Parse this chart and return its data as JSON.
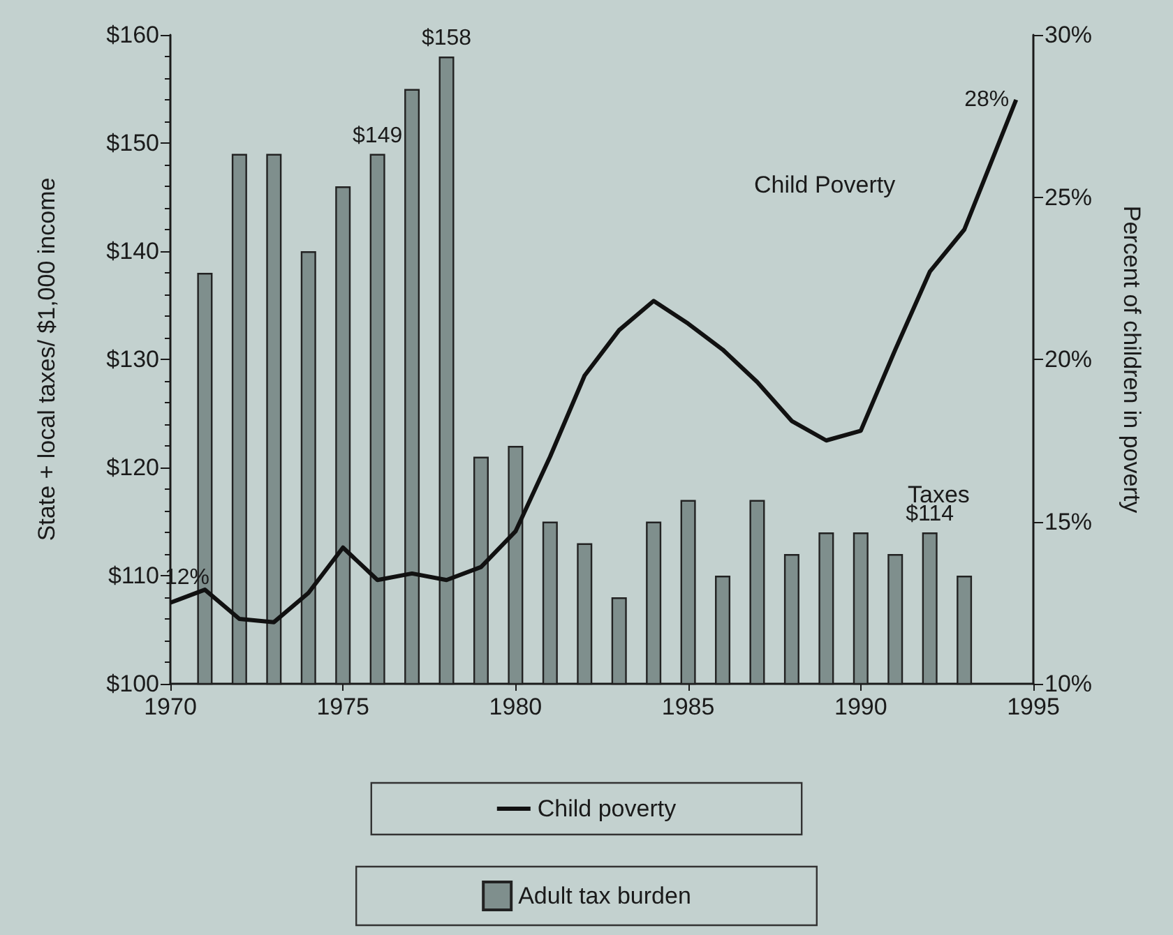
{
  "chart_data": {
    "type": "bar",
    "xlabel": null,
    "ylabel": "State + local taxes/ $1,000 income",
    "y2label": "Percent of children in poverty",
    "x": [
      1971,
      1972,
      1973,
      1974,
      1975,
      1976,
      1977,
      1978,
      1979,
      1980,
      1981,
      1982,
      1983,
      1984,
      1985,
      1986,
      1987,
      1988,
      1989,
      1990,
      1991,
      1992,
      1993
    ],
    "series": [
      {
        "name": "Child poverty",
        "type": "line",
        "axis": "y2",
        "color": "#111111",
        "x": [
          1970,
          1971,
          1972,
          1973,
          1974,
          1975,
          1976,
          1977,
          1978,
          1979,
          1980,
          1981,
          1982,
          1983,
          1984,
          1985,
          1986,
          1987,
          1988,
          1989,
          1990,
          1991,
          1992,
          1993,
          1994.5
        ],
        "values": [
          12.5,
          12.9,
          12.0,
          11.9,
          12.8,
          14.2,
          13.2,
          13.4,
          13.2,
          13.6,
          14.7,
          17.0,
          19.5,
          20.9,
          21.8,
          21.1,
          20.3,
          19.3,
          18.1,
          17.5,
          17.8,
          20.3,
          22.7,
          24.0,
          28
        ],
        "value_labels": [
          "12%",
          null,
          null,
          null,
          null,
          null,
          null,
          null,
          null,
          null,
          null,
          null,
          null,
          null,
          null,
          null,
          null,
          null,
          null,
          null,
          null,
          null,
          null,
          null,
          "28%"
        ]
      },
      {
        "name": "Adult tax burden",
        "color": "#7f8f8d",
        "values": [
          138,
          149,
          149,
          140,
          146,
          149,
          155,
          158,
          121,
          122,
          115,
          113,
          108,
          115,
          117,
          110,
          117,
          112,
          114,
          114,
          112,
          114,
          110
        ],
        "value_labels": [
          null,
          null,
          null,
          null,
          null,
          "$149",
          null,
          "$158",
          null,
          null,
          null,
          null,
          null,
          null,
          null,
          null,
          null,
          null,
          null,
          null,
          null,
          "$114",
          null
        ]
      }
    ],
    "xlim": [
      1970,
      1995
    ],
    "xticks": [
      1970,
      1975,
      1980,
      1985,
      1990,
      1995
    ],
    "ylim": [
      100,
      160
    ],
    "yticks": [
      {
        "value": 100,
        "label": "$100"
      },
      {
        "value": 110,
        "label": "$110"
      },
      {
        "value": 120,
        "label": "$120"
      },
      {
        "value": 130,
        "label": "$130"
      },
      {
        "value": 140,
        "label": "$140"
      },
      {
        "value": 150,
        "label": "$150"
      },
      {
        "value": 160,
        "label": "$160"
      }
    ],
    "y2lim": [
      10,
      30
    ],
    "y2ticks": [
      {
        "value": 10,
        "label": "10%"
      },
      {
        "value": 15,
        "label": "15%"
      },
      {
        "value": 20,
        "label": "20%"
      },
      {
        "value": 25,
        "label": "25%"
      },
      {
        "value": 30,
        "label": "30%"
      }
    ],
    "annotations": [
      "Child Poverty",
      "Taxes"
    ],
    "legend": "bottom",
    "grid": false
  }
}
